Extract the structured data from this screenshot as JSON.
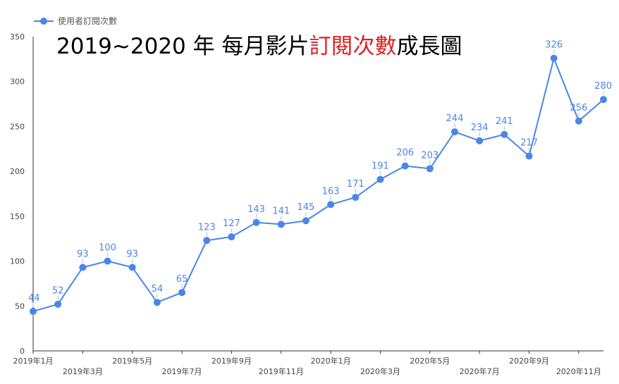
{
  "chart_data": {
    "type": "line",
    "title_parts": [
      {
        "text": "2019~2020 年 每月影片",
        "color": "#000000"
      },
      {
        "text": "訂閱次數",
        "color": "#e02020"
      },
      {
        "text": "成長圖",
        "color": "#000000"
      }
    ],
    "legend": {
      "label": "使用者訂閱次數",
      "position": "top-left"
    },
    "series": [
      {
        "name": "使用者訂閱次數",
        "color": "#4a86e8",
        "values": [
          44,
          52,
          93,
          100,
          93,
          54,
          65,
          123,
          127,
          143,
          141,
          145,
          163,
          171,
          191,
          206,
          203,
          244,
          234,
          241,
          217,
          326,
          256,
          280
        ]
      }
    ],
    "x_tick_labels": [
      {
        "index": 0,
        "label": "2019年1月",
        "row": 0
      },
      {
        "index": 2,
        "label": "2019年3月",
        "row": 1
      },
      {
        "index": 4,
        "label": "2019年5月",
        "row": 0
      },
      {
        "index": 6,
        "label": "2019年7月",
        "row": 1
      },
      {
        "index": 8,
        "label": "2019年9月",
        "row": 0
      },
      {
        "index": 10,
        "label": "2019年11月",
        "row": 1
      },
      {
        "index": 12,
        "label": "2020年1月",
        "row": 0
      },
      {
        "index": 14,
        "label": "2020年3月",
        "row": 1
      },
      {
        "index": 16,
        "label": "2020年5月",
        "row": 0
      },
      {
        "index": 18,
        "label": "2020年7月",
        "row": 1
      },
      {
        "index": 20,
        "label": "2020年9月",
        "row": 0
      },
      {
        "index": 22,
        "label": "2020年11月",
        "row": 1
      }
    ],
    "y_ticks": [
      0,
      50,
      100,
      150,
      200,
      250,
      300,
      350
    ],
    "ylim": [
      0,
      350
    ],
    "grid": false,
    "data_labels": true
  }
}
